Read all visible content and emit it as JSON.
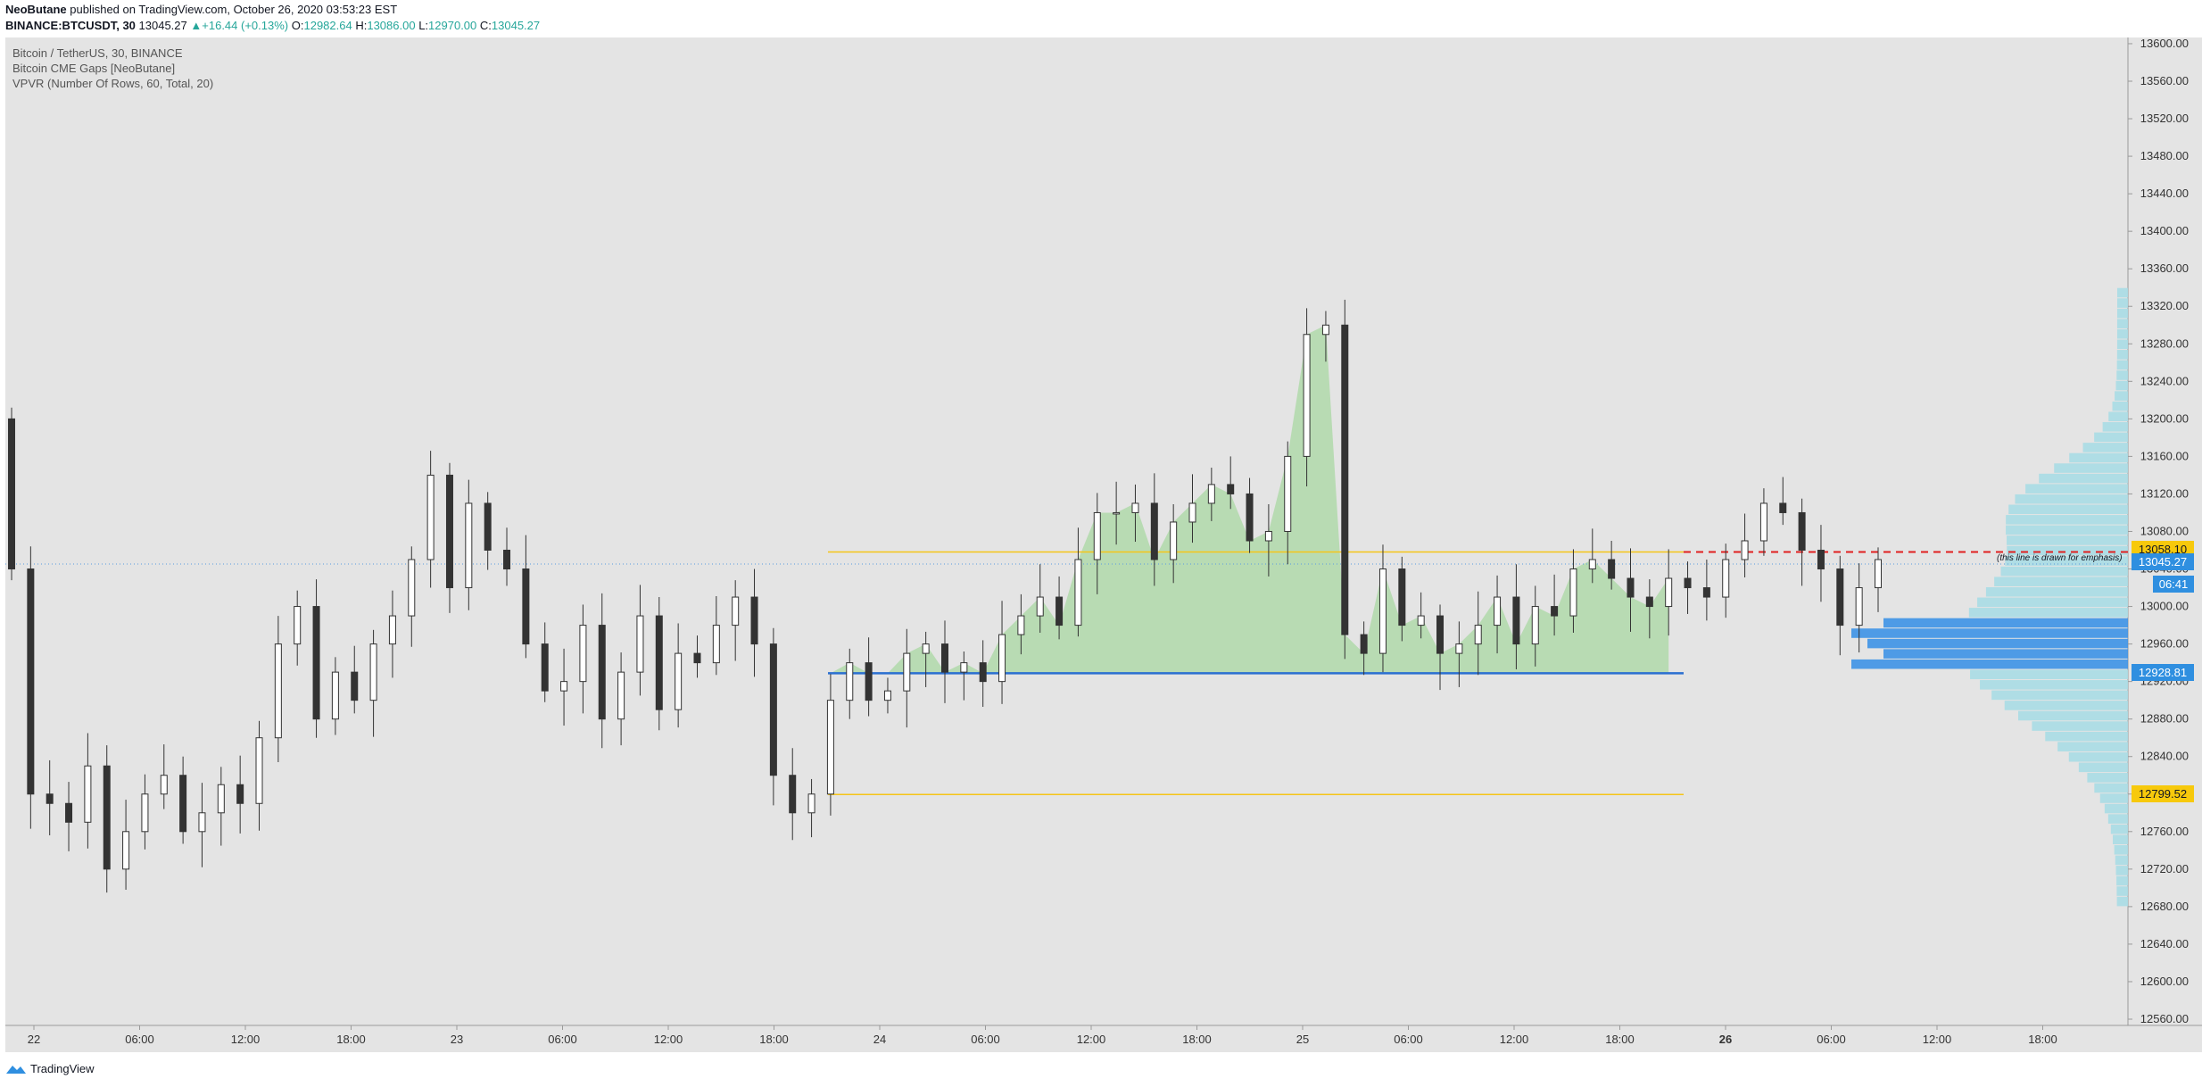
{
  "header": {
    "author": "NeoButane",
    "published": "published on TradingView.com, October 26, 2020 03:53:23 EST",
    "symbol": "BINANCE:BTCUSDT, 30",
    "last": "13045.27",
    "change_arrow": "▲",
    "change": "+16.44 (+0.13%)",
    "o_label": "O:",
    "o": "12982.64",
    "h_label": "H:",
    "h": "13086.00",
    "l_label": "L:",
    "l": "12970.00",
    "c_label": "C:",
    "c": "13045.27"
  },
  "legend": {
    "title": "Bitcoin / TetherUS, 30, BINANCE",
    "indicator1": "Bitcoin CME Gaps [NeoButane]",
    "indicator2": "VPVR (Number Of Rows, 60, Total, 20)"
  },
  "price_labels": {
    "upper": "13058.10",
    "current": "13045.27",
    "countdown": "06:41",
    "gap_low": "12928.81",
    "lower": "12799.52"
  },
  "annotation": "(this line is drawn for emphasis)",
  "footer": {
    "brand": "TradingView",
    "logo_icon": "tradingview-logo-icon"
  },
  "colors": {
    "background": "#e4e4e4",
    "gap_fill": "#b5dab0",
    "gap_line": "#2a6fd0",
    "yellow_line": "#f5c518",
    "dashed_line": "#e02020",
    "vpvr": "#a9dbe4",
    "vpvr_poc": "#3d92e6",
    "candle_up": "#ffffff",
    "candle_down": "#333333"
  },
  "chart_data": {
    "type": "candlestick",
    "symbol": "BTCUSDT",
    "interval": "30",
    "ylim": [
      12560,
      13600
    ],
    "y_ticks": [
      12560,
      12600,
      12640,
      12680,
      12720,
      12760,
      12800,
      12840,
      12880,
      12920,
      12960,
      13000,
      13040,
      13080,
      13120,
      13160,
      13200,
      13240,
      13280,
      13320,
      13360,
      13400,
      13440,
      13480,
      13520,
      13560,
      13600
    ],
    "y_tick_labels": [
      "12560.00",
      "12600.00",
      "12640.00",
      "12680.00",
      "12720.00",
      "12760.00",
      "12800.00",
      "12840.00",
      "12880.00",
      "12920.00",
      "12960.00",
      "13000.00",
      "13040.00",
      "13080.00",
      "13120.00",
      "13160.00",
      "13200.00",
      "13240.00",
      "13280.00",
      "13320.00",
      "13360.00",
      "13400.00",
      "13440.00",
      "13480.00",
      "13520.00",
      "13560.00",
      "13600.00"
    ],
    "x_ticks": [
      "22",
      "06:00",
      "12:00",
      "18:00",
      "23",
      "06:00",
      "12:00",
      "18:00",
      "24",
      "06:00",
      "12:00",
      "18:00",
      "25",
      "06:00",
      "12:00",
      "18:00",
      "26",
      "06:00",
      "12:00",
      "18:00"
    ],
    "x_tick_bold": [
      false,
      false,
      false,
      false,
      false,
      false,
      false,
      false,
      false,
      false,
      false,
      false,
      false,
      false,
      false,
      false,
      true,
      false,
      false,
      false
    ],
    "closes": [
      13040,
      12800,
      12790,
      12770,
      12830,
      12720,
      12760,
      12800,
      12820,
      12760,
      12780,
      12810,
      12790,
      12860,
      12960,
      13000,
      12880,
      12930,
      12900,
      12960,
      12990,
      13050,
      13140,
      13020,
      13110,
      13060,
      13040,
      12960,
      12910,
      12920,
      12980,
      12880,
      12930,
      12990,
      12890,
      12950,
      12940,
      12980,
      13010,
      12960,
      12820,
      12780,
      12800,
      12900,
      12940,
      12900,
      12910,
      12950,
      12960,
      12930,
      12940,
      12920,
      12970,
      12990,
      13010,
      12980,
      13050,
      13100,
      13100,
      13110,
      13050,
      13090,
      13110,
      13130,
      13120,
      13070,
      13080,
      13160,
      13290,
      13300,
      12970,
      12950,
      13040,
      12980,
      12990,
      12950,
      12960,
      12980,
      13010,
      12960,
      13000,
      12990,
      13040,
      13050,
      13030,
      13010,
      13000,
      13030,
      13020,
      13010,
      13050,
      13070,
      13110,
      13100,
      13060,
      13040,
      12980,
      13020,
      13050
    ],
    "gap": {
      "top": 13058.1,
      "bottom": 12928.81
    },
    "levels": {
      "upper": 13058.1,
      "lower": 12799.52,
      "current": 13045.27
    },
    "vpvr_rows": 60
  }
}
